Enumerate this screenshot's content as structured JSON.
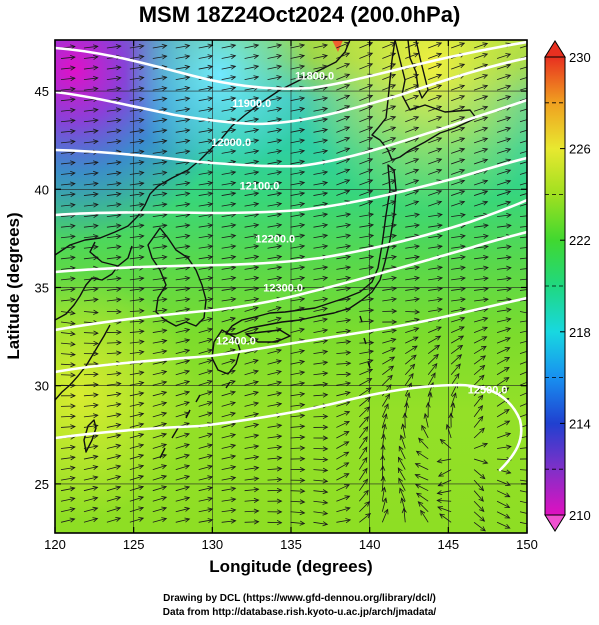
{
  "title": "MSM 18Z24Oct2024 (200.0hPa)",
  "xlabel": "Longitude (degrees)",
  "ylabel": "Latitude  (degrees)",
  "credits": [
    "Drawing by DCL (https://www.gfd-dennou.org/library/dcl/)",
    "Data from http://database.rish.kyoto-u.ac.jp/arch/jmadata/"
  ],
  "chart_data": {
    "type": "map",
    "x_ticks": [
      "120",
      "125",
      "130",
      "135",
      "140",
      "145",
      "150"
    ],
    "y_ticks": [
      "25",
      "30",
      "35",
      "40",
      "45"
    ],
    "xlim": [
      120,
      150
    ],
    "ylim": [
      22.5,
      47.6
    ],
    "colorbar": {
      "ticks": [
        "210",
        "214",
        "218",
        "222",
        "226",
        "230"
      ],
      "range": [
        210,
        230
      ]
    },
    "contours": [
      {
        "label": "11800.0",
        "lon": 136.5,
        "lat": 45.6
      },
      {
        "label": "11900.0",
        "lon": 132.5,
        "lat": 44.2
      },
      {
        "label": "12000.0",
        "lon": 131.2,
        "lat": 42.2
      },
      {
        "label": "12100.0",
        "lon": 133.0,
        "lat": 40.0
      },
      {
        "label": "12200.0",
        "lon": 134.0,
        "lat": 37.3
      },
      {
        "label": "12300.0",
        "lon": 134.5,
        "lat": 34.8
      },
      {
        "label": "12400.0",
        "lon": 131.5,
        "lat": 32.1
      },
      {
        "label": "12500.0",
        "lon": 147.5,
        "lat": 29.6
      }
    ]
  }
}
